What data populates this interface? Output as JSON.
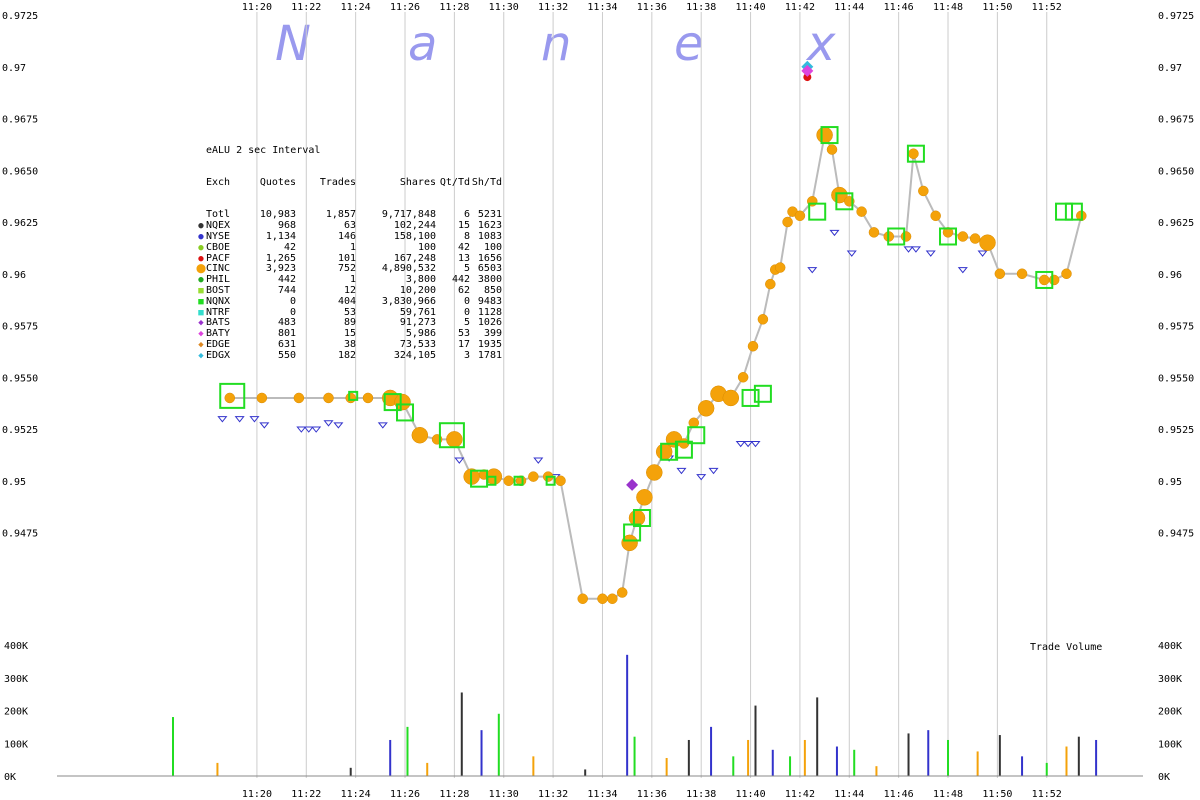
{
  "watermark": "N a n e x",
  "colors": {
    "grid": "#cccccc",
    "quote_line": "#bbbbbb",
    "nqnx": "#22dd22",
    "cinc": "#f4a20a",
    "nyse_bid": "#3333cc",
    "pacf": "#dd1111",
    "baty": "#dd44dd",
    "bats": "#9933cc",
    "edgx": "#33bbdd"
  },
  "legend": {
    "title": "eALU 2 sec Interval",
    "headers": [
      "Exch",
      "Quotes",
      "Trades",
      "Shares",
      "Qt/Td",
      "Sh/Td"
    ],
    "rows": [
      {
        "symbol": "",
        "color": "#000000",
        "exch": "Totl",
        "quotes": "10,983",
        "trades": "1,857",
        "shares": "9,717,848",
        "qttd": "6",
        "shtd": "5231"
      },
      {
        "symbol": "●",
        "color": "#333333",
        "exch": "NQEX",
        "quotes": "968",
        "trades": "63",
        "shares": "102,244",
        "qttd": "15",
        "shtd": "1623"
      },
      {
        "symbol": "●",
        "color": "#3333cc",
        "exch": "NYSE",
        "quotes": "1,134",
        "trades": "146",
        "shares": "158,100",
        "qttd": "8",
        "shtd": "1083"
      },
      {
        "symbol": "●",
        "color": "#88cc22",
        "exch": "CBOE",
        "quotes": "42",
        "trades": "1",
        "shares": "100",
        "qttd": "42",
        "shtd": "100"
      },
      {
        "symbol": "●",
        "color": "#dd1111",
        "exch": "PACF",
        "quotes": "1,265",
        "trades": "101",
        "shares": "167,248",
        "qttd": "13",
        "shtd": "1656"
      },
      {
        "symbol": "⬤",
        "color": "#f4a20a",
        "exch": "CINC",
        "quotes": "3,923",
        "trades": "752",
        "shares": "4,890,532",
        "qttd": "5",
        "shtd": "6503"
      },
      {
        "symbol": "●",
        "color": "#22aa22",
        "exch": "PHIL",
        "quotes": "442",
        "trades": "1",
        "shares": "3,800",
        "qttd": "442",
        "shtd": "3800"
      },
      {
        "symbol": "■",
        "color": "#99dd33",
        "exch": "BOST",
        "quotes": "744",
        "trades": "12",
        "shares": "10,200",
        "qttd": "62",
        "shtd": "850"
      },
      {
        "symbol": "■",
        "color": "#22dd22",
        "exch": "NQNX",
        "quotes": "0",
        "trades": "404",
        "shares": "3,830,966",
        "qttd": "0",
        "shtd": "9483"
      },
      {
        "symbol": "■",
        "color": "#33ddcc",
        "exch": "NTRF",
        "quotes": "0",
        "trades": "53",
        "shares": "59,761",
        "qttd": "0",
        "shtd": "1128"
      },
      {
        "symbol": "◆",
        "color": "#9933cc",
        "exch": "BATS",
        "quotes": "483",
        "trades": "89",
        "shares": "91,273",
        "qttd": "5",
        "shtd": "1026"
      },
      {
        "symbol": "◆",
        "color": "#dd44dd",
        "exch": "BATY",
        "quotes": "801",
        "trades": "15",
        "shares": "5,986",
        "qttd": "53",
        "shtd": "399"
      },
      {
        "symbol": "◆",
        "color": "#dd8822",
        "exch": "EDGE",
        "quotes": "631",
        "trades": "38",
        "shares": "73,533",
        "qttd": "17",
        "shtd": "1935"
      },
      {
        "symbol": "◆",
        "color": "#33bbdd",
        "exch": "EDGX",
        "quotes": "550",
        "trades": "182",
        "shares": "324,105",
        "qttd": "3",
        "shtd": "1781"
      }
    ]
  },
  "chart_data": {
    "type": "scatter",
    "title": "",
    "x_ticks": [
      "11:20",
      "11:22",
      "11:24",
      "11:26",
      "11:28",
      "11:30",
      "11:32",
      "11:34",
      "11:36",
      "11:38",
      "11:40",
      "11:42",
      "11:44",
      "11:46",
      "11:48",
      "11:50",
      "11:52"
    ],
    "price_ticks": [
      "0.9725",
      "0.97",
      "0.9675",
      "0.9650",
      "0.9625",
      "0.96",
      "0.9575",
      "0.9550",
      "0.9525",
      "0.95",
      "0.9475"
    ],
    "price_ylim": [
      0.9425,
      0.9725
    ],
    "volume_label": "Trade Volume",
    "volume_ticks": [
      "400K",
      "300K",
      "200K",
      "100K",
      "0K"
    ],
    "volume_ylim": [
      0,
      400000
    ],
    "grid": true,
    "xlim_minutes": [
      11.9,
      55.9
    ],
    "trade_price": {
      "name": "CINC",
      "x_minutes": [
        18.9,
        20.2,
        21.7,
        22.9,
        23.8,
        24.5,
        25.4,
        25.9,
        26.6,
        27.3,
        28.0,
        28.7,
        29.2,
        29.6,
        30.2,
        30.7,
        31.2,
        31.8,
        32.3,
        33.2,
        34.0,
        34.4,
        34.8,
        35.1,
        35.4,
        35.7,
        36.1,
        36.5,
        36.9,
        37.3,
        37.7,
        38.2,
        38.7,
        39.2,
        39.7,
        40.1,
        40.5,
        40.8,
        41.0,
        41.2,
        41.5,
        41.7,
        42.0,
        42.5,
        43.0,
        43.3,
        43.6,
        44.0,
        44.5,
        45.0,
        45.6,
        46.3,
        46.6,
        47.0,
        47.5,
        48.0,
        48.6,
        49.1,
        49.6,
        50.1,
        51.0,
        51.9,
        52.3,
        52.8,
        53.4
      ],
      "y": [
        0.954,
        0.954,
        0.954,
        0.954,
        0.954,
        0.954,
        0.954,
        0.9538,
        0.9522,
        0.952,
        0.952,
        0.9502,
        0.9503,
        0.9502,
        0.95,
        0.95,
        0.9502,
        0.9502,
        0.95,
        0.9443,
        0.9443,
        0.9443,
        0.9446,
        0.947,
        0.9482,
        0.9492,
        0.9504,
        0.9514,
        0.952,
        0.9518,
        0.9528,
        0.9535,
        0.9542,
        0.954,
        0.955,
        0.9565,
        0.9578,
        0.9595,
        0.9602,
        0.9603,
        0.9625,
        0.963,
        0.9628,
        0.9635,
        0.9667,
        0.966,
        0.9638,
        0.9635,
        0.963,
        0.962,
        0.9618,
        0.9618,
        0.9658,
        0.964,
        0.9628,
        0.962,
        0.9618,
        0.9617,
        0.9615,
        0.96,
        0.96,
        0.9597,
        0.9597,
        0.96,
        0.9628
      ],
      "sizes": [
        1,
        1,
        1,
        1,
        1,
        1,
        2,
        2,
        2,
        1,
        2,
        2,
        1,
        2,
        1,
        1,
        1,
        1,
        1,
        1,
        1,
        1,
        1,
        2,
        2,
        2,
        2,
        2,
        2,
        1,
        1,
        2,
        2,
        2,
        1,
        1,
        1,
        1,
        1,
        1,
        1,
        1,
        1,
        1,
        2,
        1,
        2,
        1,
        1,
        1,
        1,
        1,
        1,
        1,
        1,
        1,
        1,
        1,
        2,
        1,
        1,
        1,
        1,
        1,
        1
      ]
    },
    "nqnx_trades": {
      "name": "NQNX",
      "x_minutes": [
        19.0,
        23.9,
        25.5,
        26.0,
        27.9,
        29.0,
        29.5,
        30.6,
        31.9,
        35.2,
        35.6,
        36.7,
        37.3,
        37.8,
        40.0,
        40.5,
        42.7,
        43.2,
        43.8,
        45.9,
        46.7,
        48.0,
        51.9,
        52.7,
        53.1
      ],
      "y": [
        0.9541,
        0.9541,
        0.9538,
        0.9533,
        0.9522,
        0.9501,
        0.95,
        0.95,
        0.95,
        0.9475,
        0.9482,
        0.9514,
        0.9515,
        0.9522,
        0.954,
        0.9542,
        0.963,
        0.9667,
        0.9635,
        0.9618,
        0.9658,
        0.9618,
        0.9597,
        0.963,
        0.963
      ],
      "sizes": [
        3,
        1,
        2,
        2,
        3,
        2,
        1,
        1,
        1,
        2,
        2,
        2,
        2,
        2,
        2,
        2,
        2,
        2,
        2,
        2,
        2,
        2,
        2,
        2,
        2
      ]
    },
    "nyse_bids": {
      "name": "NYSE",
      "x_minutes": [
        18.6,
        19.3,
        19.9,
        20.3,
        21.8,
        22.1,
        22.4,
        22.9,
        23.3,
        25.1,
        28.2,
        31.4,
        32.1,
        36.7,
        37.2,
        38.0,
        38.5,
        39.6,
        39.9,
        40.2,
        42.5,
        43.4,
        44.1,
        46.4,
        46.7,
        47.3,
        48.6,
        49.4
      ],
      "y": [
        0.953,
        0.953,
        0.953,
        0.9527,
        0.9525,
        0.9525,
        0.9525,
        0.9528,
        0.9527,
        0.9527,
        0.951,
        0.951,
        0.9502,
        0.9511,
        0.9505,
        0.9502,
        0.9505,
        0.9518,
        0.9518,
        0.9518,
        0.9602,
        0.962,
        0.961,
        0.9612,
        0.9612,
        0.961,
        0.9602,
        0.961
      ]
    },
    "special_points": [
      {
        "exch": "BATS",
        "minutes": 35.2,
        "price": 0.9498
      },
      {
        "exch": "EDGX",
        "minutes": 42.3,
        "price": 0.97
      },
      {
        "exch": "PACF",
        "minutes": 42.3,
        "price": 0.9695
      },
      {
        "exch": "BATY",
        "minutes": 42.3,
        "price": 0.9698
      }
    ],
    "volume": {
      "x_minutes": [
        16.6,
        18.4,
        23.8,
        25.4,
        26.1,
        26.9,
        28.3,
        29.1,
        29.8,
        31.2,
        33.3,
        35.0,
        35.3,
        36.6,
        37.5,
        38.4,
        39.3,
        39.9,
        40.2,
        40.9,
        41.6,
        42.2,
        42.7,
        43.5,
        44.2,
        45.1,
        46.4,
        47.2,
        48.0,
        49.2,
        50.1,
        51.0,
        52.0,
        52.8,
        53.3,
        54.0
      ],
      "values": [
        180000,
        40000,
        25000,
        110000,
        150000,
        40000,
        255000,
        140000,
        190000,
        60000,
        20000,
        370000,
        120000,
        55000,
        110000,
        150000,
        60000,
        110000,
        215000,
        80000,
        60000,
        110000,
        240000,
        90000,
        80000,
        30000,
        130000,
        140000,
        110000,
        75000,
        125000,
        60000,
        40000,
        90000,
        120000,
        110000
      ]
    }
  }
}
